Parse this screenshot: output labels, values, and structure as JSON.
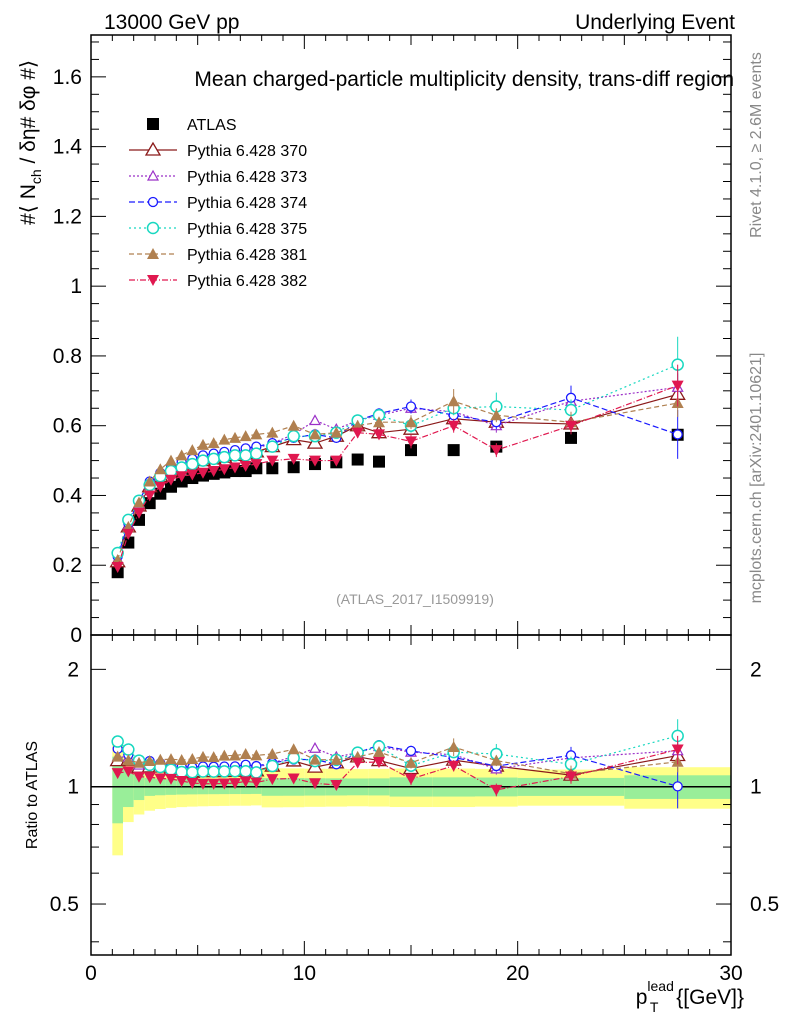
{
  "header": {
    "left": "13000 GeV pp",
    "right": "Underlying Event"
  },
  "side": {
    "rivet": "Rivet 4.1.0, ≥ 2.6M events",
    "mcplots": "mcplots.cern.ch [arXiv:2401.10621]"
  },
  "chart_data": {
    "type": "scatter",
    "title": "Mean charged-particle multiplicity density, trans-diff region",
    "analysis_label": "(ATLAS_2017_I1509919)",
    "ylabel_parts": {
      "a": "#⟨ N",
      "sub": "ch",
      "b": " / δη# δφ #⟩"
    },
    "ratio_ylabel": "Ratio to ATLAS",
    "xlabel_parts": {
      "p": "p",
      "sup": "lead",
      "sub": "T",
      "rest": " {[GeV]}"
    },
    "xlim": [
      0,
      30
    ],
    "ylim": [
      0,
      1.72
    ],
    "ratio_ylim": [
      0.37,
      2.45
    ],
    "x_ticks": [
      "0",
      "10",
      "20",
      "30"
    ],
    "x_tick_values": [
      0,
      10,
      20,
      30
    ],
    "y_ticks": [
      "0",
      "0.2",
      "0.4",
      "0.6",
      "0.8",
      "1",
      "1.2",
      "1.4",
      "1.6"
    ],
    "y_tick_values": [
      0,
      0.2,
      0.4,
      0.6,
      0.8,
      1,
      1.2,
      1.4,
      1.6
    ],
    "ratio_ticks": [
      "0.5",
      "1",
      "2"
    ],
    "ratio_tick_values": [
      0.5,
      1,
      2
    ],
    "x": [
      1.25,
      1.75,
      2.25,
      2.75,
      3.25,
      3.75,
      4.25,
      4.75,
      5.25,
      5.75,
      6.25,
      6.75,
      7.25,
      7.75,
      8.5,
      9.5,
      10.5,
      11.5,
      12.5,
      13.5,
      15.0,
      17.0,
      19.0,
      22.5,
      27.5
    ],
    "xerr": [
      0.25,
      0.25,
      0.25,
      0.25,
      0.25,
      0.25,
      0.25,
      0.25,
      0.25,
      0.25,
      0.25,
      0.25,
      0.25,
      0.25,
      0.5,
      0.5,
      0.5,
      0.5,
      0.5,
      0.5,
      1.0,
      1.0,
      1.0,
      2.5,
      2.5
    ],
    "data": {
      "name": "ATLAS",
      "color": "#000000",
      "values": [
        0.18,
        0.265,
        0.33,
        0.378,
        0.405,
        0.425,
        0.44,
        0.45,
        0.457,
        0.462,
        0.466,
        0.47,
        0.47,
        0.478,
        0.478,
        0.481,
        0.49,
        0.495,
        0.503,
        0.497,
        0.53,
        0.53,
        0.54,
        0.565,
        0.574
      ],
      "band_inner": [
        0.035,
        0.03,
        0.025,
        0.02,
        0.02,
        0.02,
        0.02,
        0.02,
        0.02,
        0.02,
        0.02,
        0.02,
        0.02,
        0.02,
        0.025,
        0.025,
        0.025,
        0.025,
        0.025,
        0.025,
        0.03,
        0.03,
        0.03,
        0.03,
        0.04
      ],
      "band_outer": [
        0.06,
        0.05,
        0.05,
        0.05,
        0.05,
        0.05,
        0.05,
        0.05,
        0.05,
        0.05,
        0.05,
        0.05,
        0.05,
        0.05,
        0.055,
        0.055,
        0.055,
        0.055,
        0.055,
        0.055,
        0.06,
        0.06,
        0.06,
        0.06,
        0.07
      ]
    },
    "series": [
      {
        "name": "Pythia 6.428 370",
        "color": "#8b1a1a",
        "marker": "triangle-open",
        "dash": "",
        "values": [
          0.21,
          0.31,
          0.37,
          0.425,
          0.455,
          0.47,
          0.48,
          0.49,
          0.5,
          0.505,
          0.51,
          0.515,
          0.52,
          0.525,
          0.54,
          0.56,
          0.55,
          0.57,
          0.6,
          0.58,
          0.59,
          0.62,
          0.61,
          0.605,
          0.69
        ],
        "err": [
          0.005,
          0.005,
          0.005,
          0.005,
          0.005,
          0.005,
          0.005,
          0.005,
          0.005,
          0.005,
          0.005,
          0.005,
          0.005,
          0.005,
          0.01,
          0.01,
          0.01,
          0.01,
          0.015,
          0.015,
          0.015,
          0.02,
          0.02,
          0.02,
          0.04
        ]
      },
      {
        "name": "Pythia 6.428 373",
        "color": "#9b30c8",
        "marker": "triangle-open-small",
        "dash": "2,2",
        "values": [
          0.215,
          0.315,
          0.375,
          0.43,
          0.46,
          0.48,
          0.49,
          0.5,
          0.51,
          0.515,
          0.52,
          0.525,
          0.53,
          0.535,
          0.55,
          0.575,
          0.615,
          0.59,
          0.615,
          0.63,
          0.65,
          0.64,
          0.6,
          0.67,
          0.71
        ],
        "err": [
          0.005,
          0.005,
          0.005,
          0.005,
          0.005,
          0.005,
          0.005,
          0.005,
          0.005,
          0.005,
          0.005,
          0.005,
          0.005,
          0.005,
          0.01,
          0.01,
          0.012,
          0.012,
          0.015,
          0.015,
          0.015,
          0.02,
          0.02,
          0.025,
          0.04
        ]
      },
      {
        "name": "Pythia 6.428 374",
        "color": "#1a1aff",
        "marker": "circle-open",
        "dash": "6,3",
        "values": [
          0.225,
          0.32,
          0.385,
          0.44,
          0.465,
          0.48,
          0.495,
          0.505,
          0.515,
          0.52,
          0.525,
          0.53,
          0.535,
          0.54,
          0.55,
          0.565,
          0.575,
          0.565,
          0.615,
          0.635,
          0.655,
          0.63,
          0.61,
          0.68,
          0.575
        ],
        "err": [
          0.005,
          0.005,
          0.005,
          0.005,
          0.005,
          0.005,
          0.005,
          0.005,
          0.005,
          0.005,
          0.005,
          0.005,
          0.005,
          0.005,
          0.01,
          0.01,
          0.012,
          0.012,
          0.015,
          0.015,
          0.02,
          0.02,
          0.02,
          0.035,
          0.07
        ]
      },
      {
        "name": "Pythia 6.428 375",
        "color": "#18d8c0",
        "marker": "circle-open-large",
        "dash": "2,3",
        "values": [
          0.235,
          0.33,
          0.385,
          0.43,
          0.455,
          0.47,
          0.48,
          0.49,
          0.5,
          0.505,
          0.51,
          0.515,
          0.515,
          0.52,
          0.54,
          0.57,
          0.57,
          0.58,
          0.615,
          0.63,
          0.6,
          0.65,
          0.655,
          0.645,
          0.775
        ],
        "err": [
          0.005,
          0.005,
          0.005,
          0.005,
          0.005,
          0.005,
          0.005,
          0.005,
          0.005,
          0.005,
          0.005,
          0.005,
          0.005,
          0.005,
          0.01,
          0.01,
          0.012,
          0.012,
          0.015,
          0.015,
          0.02,
          0.02,
          0.04,
          0.03,
          0.08
        ]
      },
      {
        "name": "Pythia 6.428 381",
        "color": "#b08050",
        "marker": "triangle-filled",
        "dash": "5,3",
        "values": [
          0.215,
          0.31,
          0.38,
          0.44,
          0.475,
          0.5,
          0.515,
          0.53,
          0.545,
          0.55,
          0.56,
          0.565,
          0.57,
          0.575,
          0.58,
          0.6,
          0.575,
          0.58,
          0.6,
          0.61,
          0.61,
          0.67,
          0.63,
          0.61,
          0.665
        ],
        "err": [
          0.005,
          0.005,
          0.005,
          0.005,
          0.005,
          0.005,
          0.005,
          0.005,
          0.005,
          0.005,
          0.005,
          0.005,
          0.005,
          0.005,
          0.01,
          0.01,
          0.012,
          0.012,
          0.015,
          0.015,
          0.02,
          0.035,
          0.02,
          0.03,
          0.04
        ]
      },
      {
        "name": "Pythia 6.428 382",
        "color": "#e0184f",
        "marker": "triangle-down-filled",
        "dash": "6,2,1,2",
        "values": [
          0.195,
          0.29,
          0.35,
          0.4,
          0.425,
          0.445,
          0.455,
          0.46,
          0.465,
          0.47,
          0.475,
          0.48,
          0.485,
          0.49,
          0.5,
          0.505,
          0.5,
          0.5,
          0.58,
          0.575,
          0.555,
          0.6,
          0.53,
          0.6,
          0.715
        ],
        "err": [
          0.005,
          0.005,
          0.005,
          0.005,
          0.005,
          0.005,
          0.005,
          0.005,
          0.005,
          0.005,
          0.005,
          0.005,
          0.005,
          0.005,
          0.01,
          0.01,
          0.012,
          0.012,
          0.015,
          0.015,
          0.02,
          0.02,
          0.02,
          0.025,
          0.06
        ]
      }
    ]
  }
}
